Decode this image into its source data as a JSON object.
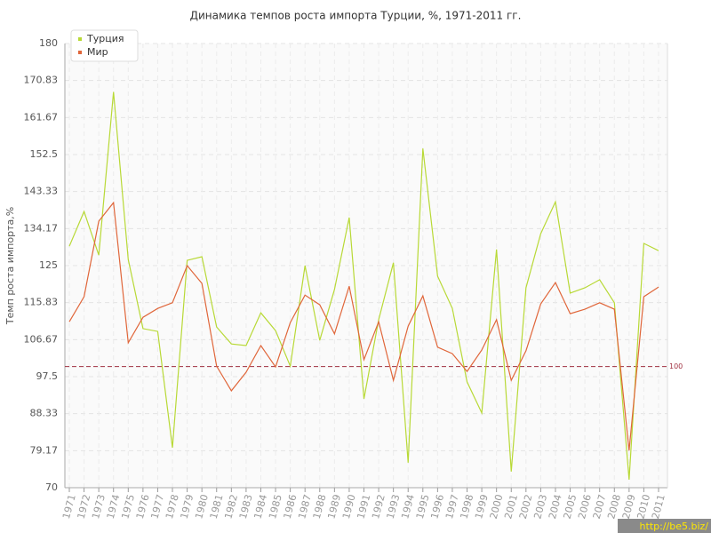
{
  "chart_data": {
    "type": "line",
    "title": "Динамика темпов роста импорта Турции, %, 1971-2011 гг.",
    "y_label": "Темп роста импорта,%",
    "watermark": "http://be5.biz/",
    "categories": [
      "1971",
      "1972",
      "1973",
      "1974",
      "1975",
      "1976",
      "1977",
      "1978",
      "1979",
      "1980",
      "1981",
      "1982",
      "1983",
      "1984",
      "1985",
      "1986",
      "1987",
      "1988",
      "1989",
      "1990",
      "1991",
      "1992",
      "1993",
      "1994",
      "1995",
      "1996",
      "1997",
      "1998",
      "1999",
      "2000",
      "2001",
      "2002",
      "2003",
      "2004",
      "2005",
      "2006",
      "2007",
      "2008",
      "2009",
      "2010",
      "2011"
    ],
    "series": [
      {
        "name": "Турция",
        "color": "#b8d936",
        "values": [
          129.8,
          138.4,
          127.6,
          168,
          126.5,
          109.4,
          108.7,
          79.9,
          126.3,
          127.2,
          109.8,
          105.6,
          105.2,
          113.3,
          108.9,
          100.1,
          125,
          106.5,
          119.1,
          136.9,
          92,
          111.6,
          125.7,
          76.2,
          154,
          122.4,
          114.4,
          96.2,
          88.5,
          129,
          74,
          119.5,
          132.9,
          140.8,
          118.2,
          119.5,
          121.5,
          115.8,
          72,
          130.5,
          128.7
        ]
      },
      {
        "name": "Мир",
        "color": "#e0663a",
        "values": [
          111.1,
          117.3,
          136,
          140.6,
          105.9,
          112.2,
          114.4,
          115.8,
          125,
          120.6,
          100.1,
          94,
          98.6,
          105.2,
          99.9,
          110.9,
          117.7,
          115.3,
          108.1,
          119.9,
          101.7,
          111.1,
          96.6,
          110,
          117.5,
          104.8,
          103.2,
          98.8,
          104.1,
          111.6,
          96.6,
          103.9,
          115.5,
          120.8,
          113.1,
          114.2,
          115.8,
          114.2,
          79.2,
          117.3,
          119.7
        ]
      }
    ],
    "ylim": [
      70,
      180
    ],
    "yticks": [
      70,
      79.17,
      88.33,
      97.5,
      106.67,
      115.83,
      125,
      134.17,
      143.33,
      152.5,
      161.67,
      170.83,
      180
    ],
    "reference_line": 100,
    "reference_color": "#a03040",
    "grid": true,
    "legend": "top-left"
  }
}
